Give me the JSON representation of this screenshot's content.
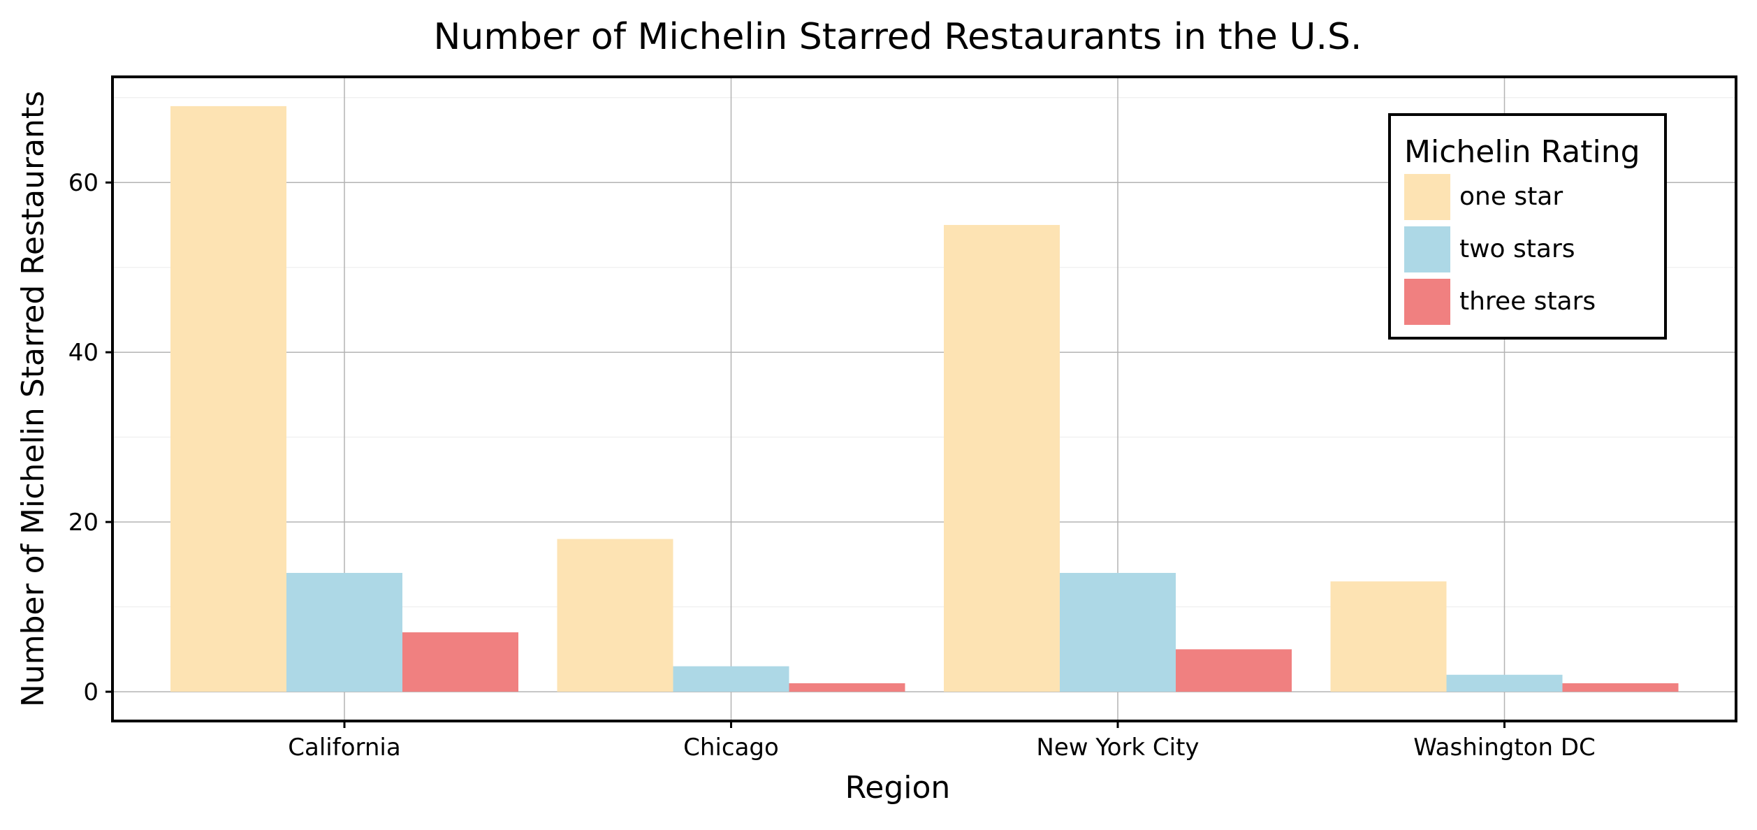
{
  "chart_data": {
    "type": "bar",
    "title": "Number of Michelin Starred Restaurants in the U.S.",
    "xlabel": "Region",
    "ylabel": "Number of Michelin Starred Restaurants",
    "categories": [
      "California",
      "Chicago",
      "New York City",
      "Washington DC"
    ],
    "series": [
      {
        "name": "one star",
        "values": [
          69,
          18,
          55,
          13
        ],
        "color": "#FDE3B3"
      },
      {
        "name": "two stars",
        "values": [
          14,
          3,
          14,
          2
        ],
        "color": "#ADD8E6"
      },
      {
        "name": "three stars",
        "values": [
          7,
          1,
          5,
          1
        ],
        "color": "#F08080"
      }
    ],
    "ylim": [
      -3.45,
      72.45
    ],
    "yticks": [
      0,
      20,
      40,
      60
    ],
    "grid": true,
    "legend": {
      "title": "Michelin Rating",
      "position": "top-right"
    }
  }
}
